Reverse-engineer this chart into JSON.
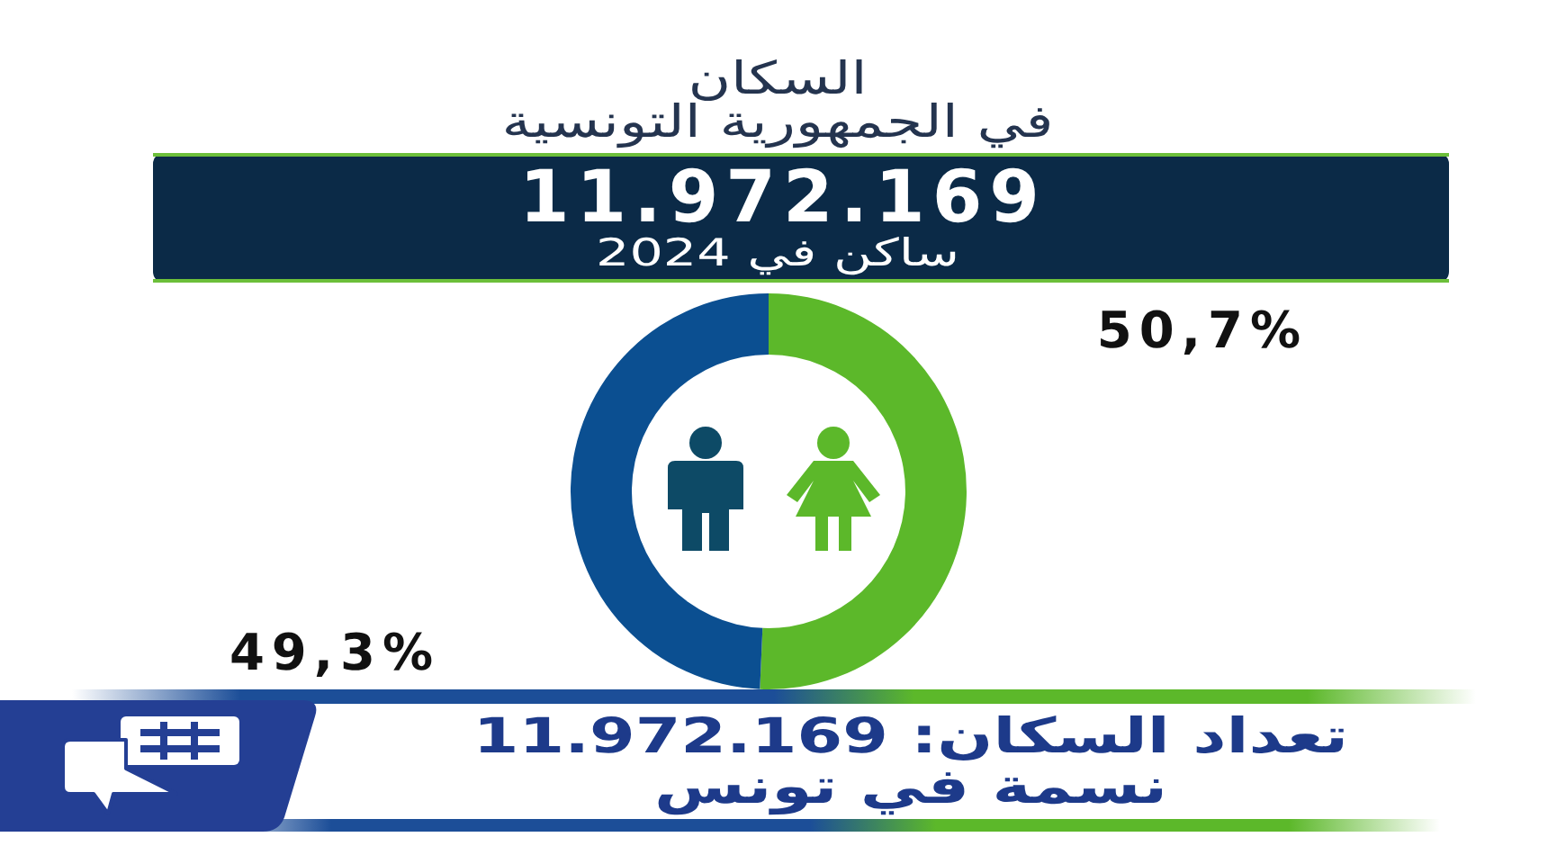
{
  "chart_data": {
    "type": "donut",
    "title": "السكان\nفي الجمهورية التونسية",
    "categories": [
      null,
      null
    ],
    "values": [
      50.7,
      49.3
    ],
    "colors": [
      "#5cb82a",
      "#0b4f91"
    ],
    "value_labels": [
      "50,7%",
      "49,3%"
    ],
    "annotations": [
      "11.972.169",
      "ساكن في 2024",
      "تعداد السكان: 11.972.169\nنسمة في تونس"
    ]
  }
}
